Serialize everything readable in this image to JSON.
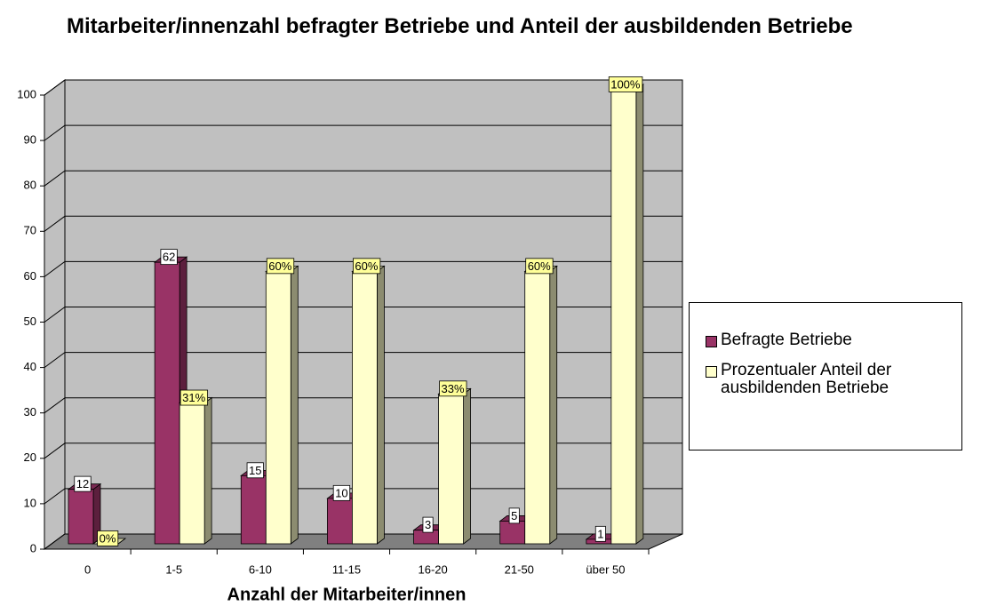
{
  "chart_data": {
    "type": "bar3d",
    "title": "Mitarbeiter/innenzahl befragter Betriebe und Anteil der ausbildenden Betriebe",
    "x_label": "Anzahl der Mitarbeiter/innen",
    "categories": [
      "0",
      "1-5",
      "6-10",
      "11-15",
      "16-20",
      "21-50",
      "über 50"
    ],
    "series": [
      {
        "name": "Befragte Betriebe",
        "color": "#993366",
        "values": [
          12,
          62,
          15,
          10,
          3,
          5,
          1
        ]
      },
      {
        "name": "Prozentualer Anteil der ausbildenden Betriebe",
        "color": "#ffffcc",
        "values": [
          0,
          31,
          60,
          60,
          33,
          60,
          100
        ],
        "value_labels": [
          "0%",
          "31%",
          "60%",
          "60%",
          "33%",
          "60%",
          "100%"
        ]
      }
    ],
    "ylim": [
      0,
      100
    ],
    "yticks": [
      0,
      10,
      20,
      30,
      40,
      50,
      60,
      70,
      80,
      90,
      100
    ],
    "grid": true,
    "legend": "right"
  }
}
